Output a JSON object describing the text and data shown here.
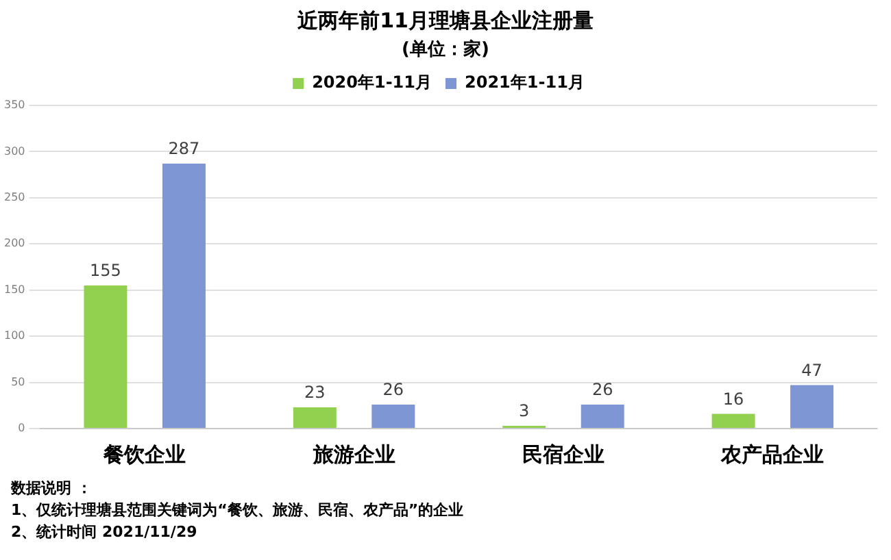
{
  "chart_data": {
    "type": "bar",
    "title": "近两年前11月理塘县企业注册量",
    "subtitle": "(单位：家)",
    "categories": [
      "餐饮企业",
      "旅游企业",
      "民宿企业",
      "农产品企业"
    ],
    "series": [
      {
        "name": "2020年1-11月",
        "color": "#92d050",
        "values": [
          155,
          23,
          3,
          16
        ]
      },
      {
        "name": "2021年1-11月",
        "color": "#7f96d4",
        "values": [
          287,
          26,
          26,
          47
        ]
      }
    ],
    "ylim": [
      0,
      350
    ],
    "yticks": [
      0,
      50,
      100,
      150,
      200,
      250,
      300,
      350
    ],
    "grid": "y",
    "legend": "top",
    "data_labels": true,
    "annotations": [
      "数据说明 ：",
      "1、仅统计理塘县范围关键词为“餐饮、旅游、民宿、农产品”的企业",
      "2、统计时间  2021/11/29"
    ]
  }
}
